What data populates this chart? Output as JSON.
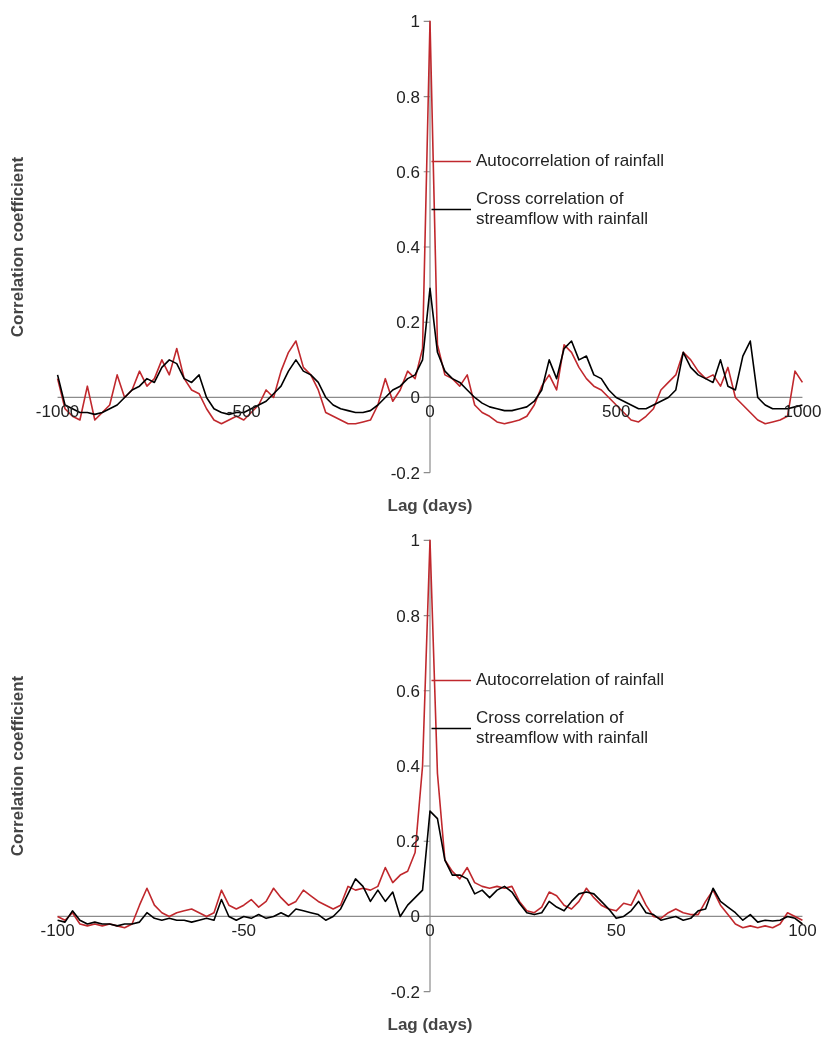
{
  "chart_data": [
    {
      "type": "line",
      "xlabel": "Lag (days)",
      "ylabel": "Correlation coefficient",
      "xlim": [
        -1000,
        1000
      ],
      "ylim": [
        -0.2,
        1
      ],
      "xticks": [
        -1000,
        -500,
        0,
        500,
        1000
      ],
      "yticks": [
        -0.2,
        0,
        0.2,
        0.4,
        0.6,
        0.8,
        1
      ],
      "legend": "top right",
      "x": [
        -1000,
        -980,
        -960,
        -940,
        -920,
        -900,
        -880,
        -860,
        -840,
        -820,
        -800,
        -780,
        -760,
        -740,
        -720,
        -700,
        -680,
        -660,
        -640,
        -620,
        -600,
        -580,
        -560,
        -540,
        -520,
        -500,
        -480,
        -460,
        -440,
        -420,
        -400,
        -380,
        -360,
        -340,
        -320,
        -300,
        -280,
        -260,
        -240,
        -220,
        -200,
        -180,
        -160,
        -140,
        -120,
        -100,
        -80,
        -60,
        -40,
        -20,
        0,
        20,
        40,
        60,
        80,
        100,
        120,
        140,
        160,
        180,
        200,
        220,
        240,
        260,
        280,
        300,
        320,
        340,
        360,
        380,
        400,
        420,
        440,
        460,
        480,
        500,
        520,
        540,
        560,
        580,
        600,
        620,
        640,
        660,
        680,
        700,
        720,
        740,
        760,
        780,
        800,
        820,
        840,
        860,
        880,
        900,
        920,
        940,
        960,
        980,
        1000
      ],
      "series": [
        {
          "name": "Autocorrelation of rainfall",
          "color": "#c0282d",
          "values": [
            0.05,
            -0.03,
            -0.05,
            -0.06,
            0.03,
            -0.06,
            -0.04,
            -0.02,
            0.06,
            0.0,
            0.02,
            0.07,
            0.03,
            0.05,
            0.1,
            0.06,
            0.13,
            0.05,
            0.02,
            0.01,
            -0.03,
            -0.06,
            -0.07,
            -0.06,
            -0.05,
            -0.06,
            -0.04,
            -0.02,
            0.02,
            0.0,
            0.07,
            0.12,
            0.15,
            0.08,
            0.06,
            0.02,
            -0.04,
            -0.05,
            -0.06,
            -0.07,
            -0.07,
            -0.065,
            -0.06,
            -0.02,
            0.05,
            -0.01,
            0.02,
            0.07,
            0.05,
            0.13,
            1,
            0.14,
            0.06,
            0.05,
            0.03,
            0.06,
            -0.02,
            -0.04,
            -0.05,
            -0.065,
            -0.07,
            -0.065,
            -0.06,
            -0.05,
            -0.02,
            0.03,
            0.06,
            0.02,
            0.14,
            0.12,
            0.08,
            0.05,
            0.03,
            0.02,
            0.0,
            -0.02,
            -0.04,
            -0.06,
            -0.065,
            -0.05,
            -0.03,
            0.02,
            0.04,
            0.06,
            0.12,
            0.1,
            0.07,
            0.05,
            0.06,
            0.03,
            0.08,
            0.0,
            -0.02,
            -0.04,
            -0.06,
            -0.07,
            -0.065,
            -0.06,
            -0.05,
            0.07,
            0.04
          ]
        },
        {
          "name": "Cross correlation of streamflow with rainfall",
          "color": "#000000",
          "values": [
            0.06,
            -0.02,
            -0.03,
            -0.04,
            -0.04,
            -0.045,
            -0.04,
            -0.03,
            -0.02,
            0.0,
            0.02,
            0.03,
            0.05,
            0.04,
            0.08,
            0.1,
            0.09,
            0.05,
            0.04,
            0.06,
            0.0,
            -0.03,
            -0.04,
            -0.045,
            -0.04,
            -0.04,
            -0.03,
            -0.02,
            -0.01,
            0.01,
            0.03,
            0.07,
            0.1,
            0.07,
            0.06,
            0.04,
            0.0,
            -0.02,
            -0.03,
            -0.035,
            -0.04,
            -0.04,
            -0.035,
            -0.02,
            0.0,
            0.02,
            0.03,
            0.05,
            0.06,
            0.1,
            0.29,
            0.12,
            0.07,
            0.05,
            0.04,
            0.02,
            0.0,
            -0.015,
            -0.025,
            -0.03,
            -0.035,
            -0.035,
            -0.03,
            -0.025,
            -0.01,
            0.02,
            0.1,
            0.05,
            0.13,
            0.15,
            0.1,
            0.11,
            0.06,
            0.05,
            0.02,
            0.0,
            -0.01,
            -0.02,
            -0.03,
            -0.03,
            -0.02,
            -0.01,
            0.0,
            0.02,
            0.12,
            0.08,
            0.06,
            0.05,
            0.04,
            0.1,
            0.03,
            0.02,
            0.11,
            0.15,
            0.0,
            -0.02,
            -0.03,
            -0.03,
            -0.03,
            -0.025,
            -0.02
          ]
        }
      ]
    },
    {
      "type": "line",
      "xlabel": "Lag (days)",
      "ylabel": "Correlation coefficient",
      "xlim": [
        -100,
        100
      ],
      "ylim": [
        -0.2,
        1
      ],
      "xticks": [
        -100,
        -50,
        0,
        50,
        100
      ],
      "yticks": [
        -0.2,
        0,
        0.2,
        0.4,
        0.6,
        0.8,
        1
      ],
      "legend": "top right",
      "x": [
        -100,
        -98,
        -96,
        -94,
        -92,
        -90,
        -88,
        -86,
        -84,
        -82,
        -80,
        -78,
        -76,
        -74,
        -72,
        -70,
        -68,
        -66,
        -64,
        -62,
        -60,
        -58,
        -56,
        -54,
        -52,
        -50,
        -48,
        -46,
        -44,
        -42,
        -40,
        -38,
        -36,
        -34,
        -32,
        -30,
        -28,
        -26,
        -24,
        -22,
        -20,
        -18,
        -16,
        -14,
        -12,
        -10,
        -8,
        -6,
        -4,
        -2,
        0,
        2,
        4,
        6,
        8,
        10,
        12,
        14,
        16,
        18,
        20,
        22,
        24,
        26,
        28,
        30,
        32,
        34,
        36,
        38,
        40,
        42,
        44,
        46,
        48,
        50,
        52,
        54,
        56,
        58,
        60,
        62,
        64,
        66,
        68,
        70,
        72,
        74,
        76,
        78,
        80,
        82,
        84,
        86,
        88,
        90,
        92,
        94,
        96,
        98,
        100
      ],
      "series": [
        {
          "name": "Autocorrelation of rainfall",
          "color": "#c0282d",
          "values": [
            0.0,
            -0.01,
            0.01,
            -0.02,
            -0.025,
            -0.02,
            -0.025,
            -0.02,
            -0.025,
            -0.03,
            -0.02,
            0.03,
            0.075,
            0.03,
            0.01,
            0.0,
            0.01,
            0.015,
            0.02,
            0.01,
            0.0,
            0.01,
            0.07,
            0.03,
            0.02,
            0.03,
            0.045,
            0.025,
            0.04,
            0.075,
            0.05,
            0.03,
            0.04,
            0.07,
            0.055,
            0.04,
            0.03,
            0.02,
            0.03,
            0.08,
            0.07,
            0.075,
            0.07,
            0.08,
            0.13,
            0.09,
            0.11,
            0.12,
            0.17,
            0.4,
            1.0,
            0.38,
            0.15,
            0.12,
            0.1,
            0.13,
            0.09,
            0.08,
            0.075,
            0.08,
            0.075,
            0.08,
            0.04,
            0.015,
            0.01,
            0.025,
            0.065,
            0.055,
            0.03,
            0.02,
            0.04,
            0.075,
            0.05,
            0.03,
            0.02,
            0.015,
            0.035,
            0.03,
            0.07,
            0.03,
            0.0,
            -0.005,
            0.01,
            0.02,
            0.01,
            0.005,
            0.005,
            0.04,
            0.07,
            0.03,
            0.005,
            -0.02,
            -0.03,
            -0.025,
            -0.03,
            -0.025,
            -0.03,
            -0.02,
            0.01,
            0.0,
            -0.01
          ]
        },
        {
          "name": "Cross correlation of streamflow with rainfall",
          "color": "#000000",
          "values": [
            -0.01,
            -0.015,
            0.015,
            -0.01,
            -0.02,
            -0.015,
            -0.02,
            -0.02,
            -0.025,
            -0.02,
            -0.02,
            -0.015,
            0.01,
            -0.005,
            -0.01,
            -0.005,
            -0.01,
            -0.01,
            -0.015,
            -0.01,
            -0.005,
            -0.01,
            0.045,
            0.0,
            -0.01,
            0.0,
            -0.005,
            0.005,
            -0.005,
            0.0,
            0.01,
            0.0,
            0.02,
            0.015,
            0.01,
            0.005,
            -0.01,
            0.0,
            0.02,
            0.06,
            0.1,
            0.08,
            0.04,
            0.07,
            0.04,
            0.065,
            0.0,
            0.03,
            0.05,
            0.07,
            0.28,
            0.26,
            0.15,
            0.11,
            0.11,
            0.1,
            0.06,
            0.07,
            0.05,
            0.07,
            0.08,
            0.065,
            0.035,
            0.01,
            0.005,
            0.01,
            0.04,
            0.025,
            0.015,
            0.04,
            0.06,
            0.065,
            0.06,
            0.04,
            0.02,
            -0.005,
            0.0,
            0.015,
            0.04,
            0.01,
            0.005,
            -0.01,
            -0.005,
            0.0,
            -0.01,
            -0.005,
            0.015,
            0.02,
            0.075,
            0.04,
            0.025,
            0.01,
            -0.01,
            0.005,
            -0.015,
            -0.01,
            -0.012,
            -0.01,
            0.0,
            -0.005,
            -0.02
          ]
        }
      ]
    }
  ]
}
